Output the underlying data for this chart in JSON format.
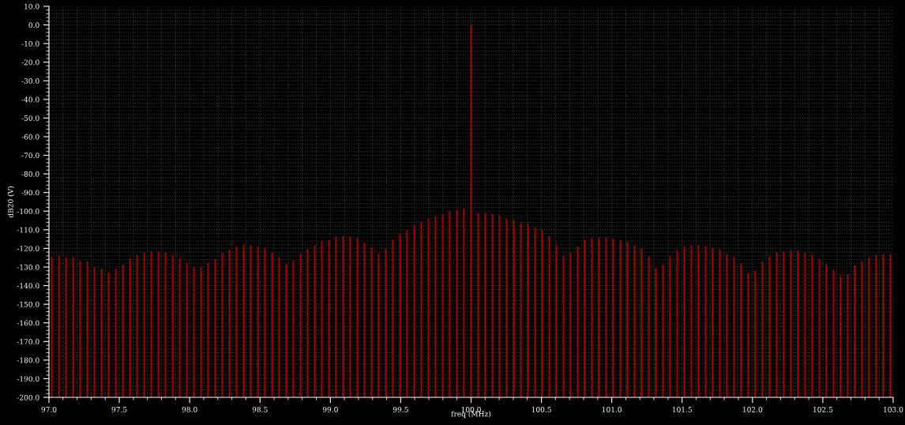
{
  "chart_data": {
    "type": "bar",
    "xlabel": "freq (MHz)",
    "ylabel": "dB20 (V)",
    "color": "#a00000",
    "grid": true,
    "x": [
      97.02,
      97.071,
      97.121,
      97.172,
      97.222,
      97.273,
      97.323,
      97.374,
      97.424,
      97.475,
      97.525,
      97.576,
      97.626,
      97.677,
      97.727,
      97.778,
      97.828,
      97.879,
      97.929,
      97.98,
      98.03,
      98.081,
      98.131,
      98.182,
      98.232,
      98.283,
      98.333,
      98.384,
      98.434,
      98.485,
      98.535,
      98.586,
      98.636,
      98.687,
      98.737,
      98.788,
      98.838,
      98.889,
      98.939,
      98.99,
      99.04,
      99.091,
      99.141,
      99.192,
      99.242,
      99.293,
      99.343,
      99.394,
      99.444,
      99.495,
      99.545,
      99.596,
      99.646,
      99.697,
      99.747,
      99.798,
      99.848,
      99.899,
      99.949,
      100.0,
      100.051,
      100.101,
      100.152,
      100.202,
      100.253,
      100.303,
      100.354,
      100.404,
      100.455,
      100.505,
      100.556,
      100.606,
      100.657,
      100.707,
      100.758,
      100.808,
      100.859,
      100.909,
      100.96,
      101.01,
      101.061,
      101.111,
      101.162,
      101.212,
      101.263,
      101.313,
      101.364,
      101.414,
      101.465,
      101.515,
      101.566,
      101.616,
      101.667,
      101.717,
      101.768,
      101.818,
      101.869,
      101.919,
      101.97,
      102.02,
      102.071,
      102.121,
      102.172,
      102.222,
      102.273,
      102.323,
      102.374,
      102.424,
      102.475,
      102.525,
      102.576,
      102.626,
      102.677,
      102.727,
      102.778,
      102.828,
      102.879,
      102.929,
      102.98
    ],
    "values": [
      75.4,
      76.0,
      75.2,
      75.5,
      73.4,
      73.0,
      70.0,
      68.9,
      67.2,
      68.9,
      71.3,
      74.7,
      76.5,
      77.7,
      78.5,
      78.5,
      77.7,
      76.2,
      74.8,
      72.3,
      69.9,
      69.9,
      72.3,
      74.3,
      77.7,
      79.3,
      80.8,
      81.8,
      81.6,
      81.0,
      80.2,
      77.7,
      75.1,
      71.6,
      73.4,
      76.9,
      79.5,
      81.5,
      83.9,
      84.7,
      86.1,
      86.7,
      86.3,
      85.7,
      83.0,
      80.6,
      76.9,
      79.8,
      84.7,
      87.6,
      90.0,
      92.6,
      93.9,
      95.9,
      97.2,
      98.6,
      100.0,
      100.7,
      101.4,
      200.0,
      98.9,
      99.2,
      98.4,
      97.6,
      96.0,
      95.3,
      93.6,
      93.4,
      91.2,
      89.7,
      86.8,
      81.8,
      75.8,
      77.5,
      81.0,
      84.6,
      85.6,
      86.0,
      86.0,
      85.3,
      84.6,
      83.5,
      81.6,
      79.9,
      75.5,
      69.3,
      71.3,
      76.1,
      79.2,
      81.0,
      81.6,
      81.8,
      81.3,
      80.2,
      79.3,
      76.8,
      75.4,
      72.0,
      66.8,
      67.9,
      73.0,
      75.5,
      77.9,
      78.5,
      79.1,
      78.9,
      77.5,
      76.4,
      74.3,
      71.6,
      68.5,
      65.6,
      66.2,
      70.9,
      73.0,
      75.2,
      76.4,
      76.8,
      76.8
    ],
    "base": [
      -200,
      -200,
      -200,
      -200,
      -200,
      -200,
      -200,
      -200,
      -200,
      -200,
      -200,
      -200,
      -200,
      -200,
      -200,
      -200,
      -200,
      -200,
      -200,
      -200,
      -200,
      -200,
      -200,
      -200,
      -200,
      -200,
      -200,
      -200,
      -200,
      -200,
      -200,
      -200,
      -200,
      -200,
      -200,
      -200,
      -200,
      -200,
      -200,
      -200,
      -200,
      -200,
      -200,
      -200,
      -200,
      -200,
      -200,
      -200,
      -200,
      -200,
      -200,
      -200,
      -200,
      -200,
      -200,
      -200,
      -200,
      -200,
      -200,
      -200,
      -200,
      -200,
      -200,
      -200,
      -200,
      -200,
      -200,
      -200,
      -200,
      -200,
      -200,
      -200,
      -200,
      -200,
      -200,
      -200,
      -200,
      -200,
      -200,
      -200,
      -200,
      -200,
      -200,
      -200,
      -200,
      -200,
      -200,
      -200,
      -200,
      -200,
      -200,
      -200,
      -200,
      -200,
      -200,
      -200,
      -200,
      -200,
      -200,
      -200,
      -200,
      -200,
      -200,
      -200,
      -200,
      -200,
      -200,
      -200,
      -200,
      -200,
      -200,
      -200,
      -200,
      -200,
      -200,
      -200,
      -200,
      -200,
      -200
    ],
    "xlim": [
      97.0,
      103.0
    ],
    "xticks": [
      {
        "value": 97.0,
        "label": "97.0"
      },
      {
        "value": 97.5,
        "label": "97.5"
      },
      {
        "value": 98.0,
        "label": "98.0"
      },
      {
        "value": 98.5,
        "label": "98.5"
      },
      {
        "value": 99.0,
        "label": "99.0"
      },
      {
        "value": 99.5,
        "label": "99.5"
      },
      {
        "value": 100.0,
        "label": "100.0"
      },
      {
        "value": 100.5,
        "label": "100.5"
      },
      {
        "value": 101.0,
        "label": "101.0"
      },
      {
        "value": 101.5,
        "label": "101.5"
      },
      {
        "value": 102.0,
        "label": "102.0"
      },
      {
        "value": 102.5,
        "label": "102.5"
      },
      {
        "value": 103.0,
        "label": "103.0"
      }
    ],
    "ylim": [
      -200,
      10
    ],
    "yticks": [
      {
        "value": 10,
        "label": "10.0"
      },
      {
        "value": 0,
        "label": "0.0"
      },
      {
        "value": -10,
        "label": "-10.0"
      },
      {
        "value": -20,
        "label": "-20.0"
      },
      {
        "value": -30,
        "label": "-30.0"
      },
      {
        "value": -40,
        "label": "-40.0"
      },
      {
        "value": -50,
        "label": "-50.0"
      },
      {
        "value": -60,
        "label": "-60.0"
      },
      {
        "value": -70,
        "label": "-70.0"
      },
      {
        "value": -80,
        "label": "-80.0"
      },
      {
        "value": -90,
        "label": "-90.0"
      },
      {
        "value": -100,
        "label": "-100.0"
      },
      {
        "value": -110,
        "label": "-110.0"
      },
      {
        "value": -120,
        "label": "-120.0"
      },
      {
        "value": -130,
        "label": "-130.0"
      },
      {
        "value": -140,
        "label": "-140.0"
      },
      {
        "value": -150,
        "label": "-150.0"
      },
      {
        "value": -160,
        "label": "-160.0"
      },
      {
        "value": -170,
        "label": "-170.0"
      },
      {
        "value": -180,
        "label": "-180.0"
      },
      {
        "value": -190,
        "label": "-190.0"
      },
      {
        "value": -200,
        "label": "-200.0"
      }
    ]
  }
}
